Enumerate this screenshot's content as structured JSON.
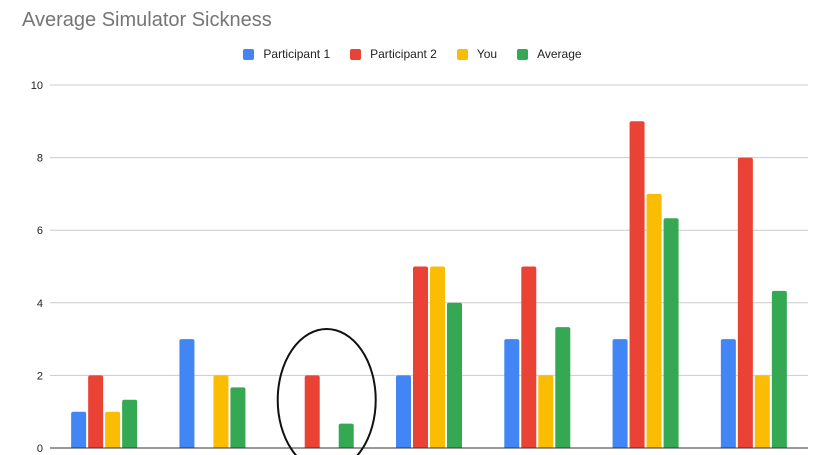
{
  "chart_data": {
    "type": "bar",
    "title": "Average Simulator Sickness",
    "xlabel": "",
    "ylabel": "",
    "ylim": [
      0,
      10
    ],
    "yticks": [
      "0",
      "2",
      "4",
      "6",
      "8",
      "10"
    ],
    "grid": true,
    "legend_position": "top",
    "group_count": 7,
    "series": [
      {
        "name": "Participant 1",
        "color": "#4285f4",
        "values": [
          1,
          3,
          null,
          2,
          3,
          3,
          3
        ]
      },
      {
        "name": "Participant 2",
        "color": "#ea4335",
        "values": [
          2,
          null,
          2,
          5,
          5,
          9,
          8
        ]
      },
      {
        "name": "You",
        "color": "#fbbc04",
        "values": [
          1,
          2,
          null,
          5,
          2,
          7,
          2
        ]
      },
      {
        "name": "Average",
        "color": "#34a853",
        "values": [
          1.33,
          1.67,
          0.67,
          4,
          3.33,
          6.33,
          4.33
        ]
      }
    ],
    "annotations": [
      {
        "type": "ellipse-outline",
        "around_group": 3
      }
    ]
  }
}
